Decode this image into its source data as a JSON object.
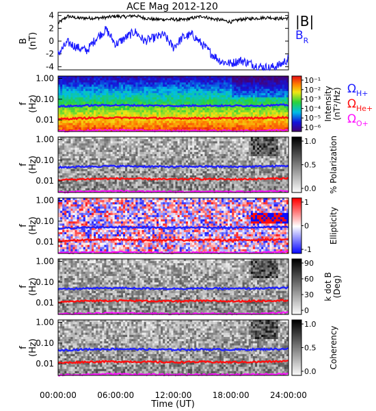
{
  "title": "ACE Mag 2012-120",
  "colors": {
    "b_total": "#000000",
    "b_r": "#1a1aff",
    "h_plus": "#2020ff",
    "he_plus": "#ff1010",
    "o_plus": "#ff10ff"
  },
  "time_axis": {
    "xlabel": "Time (UT)",
    "range_hours": [
      0,
      24
    ],
    "ticks": [
      "00:00:00",
      "06:00:00",
      "12:00:00",
      "18:00:00",
      "24:00:00"
    ]
  },
  "freq_axis": {
    "ylabel_top": "f",
    "ylabel_bottom": "(Hz)",
    "ticks": [
      "1.00",
      "0.10",
      "0.01"
    ],
    "log_range": [
      0.0028,
      1.3
    ]
  },
  "legends": {
    "b_total": "|B|",
    "b_r": "B",
    "b_r_sub": "R",
    "h_plus": "Ω",
    "h_plus_sub": "H+",
    "he_plus": "Ω",
    "he_plus_sub": "He+",
    "o_plus": "Ω",
    "o_plus_sub": "O+"
  },
  "chart_data": [
    {
      "type": "line",
      "panel": "magnetic field",
      "ylabel": "B",
      "ylabel_unit": "(nT)",
      "ylim": [
        -4.5,
        4.5
      ],
      "yticks": [
        "4",
        "2",
        "0",
        "-2",
        "-4"
      ],
      "x_hours": [
        0,
        1,
        2,
        3,
        4,
        5,
        6,
        7,
        8,
        9,
        10,
        11,
        12,
        13,
        14,
        15,
        16,
        17,
        18,
        19,
        20,
        21,
        22,
        23,
        24
      ],
      "series": [
        {
          "name": "|B|",
          "values": [
            2.8,
            3.9,
            3.6,
            3.6,
            3.6,
            3.7,
            3.9,
            3.8,
            4.0,
            3.6,
            3.4,
            3.4,
            3.4,
            3.3,
            3.6,
            3.9,
            3.5,
            3.3,
            3.0,
            3.4,
            3.5,
            3.6,
            3.7,
            3.5,
            3.6
          ]
        },
        {
          "name": "BR",
          "values": [
            -2.0,
            -0.2,
            -1.0,
            -1.5,
            0.5,
            1.8,
            -0.5,
            0.5,
            1.5,
            0.0,
            0.5,
            1.0,
            -1.0,
            0.6,
            1.0,
            -0.5,
            -2.0,
            -3.2,
            -3.5,
            -3.0,
            -3.5,
            -4.0,
            -4.2,
            -3.8,
            -2.8
          ]
        }
      ]
    },
    {
      "type": "heatmap",
      "panel": "intensity",
      "colorbar_label": "Intensity",
      "colorbar_unit": "(nT²/Hz)",
      "colorbar_ticks": [
        "10⁻¹",
        "10⁻²",
        "10⁻³",
        "10⁻⁴",
        "10⁻⁵",
        "10⁻⁶"
      ],
      "colorbar_scale": "rainbow"
    },
    {
      "type": "heatmap",
      "panel": "polarization",
      "colorbar_label": "% Polarization",
      "colorbar_ticks": [
        "1.0",
        "0.5",
        "0.0"
      ],
      "colorbar_scale": "grayscale"
    },
    {
      "type": "heatmap",
      "panel": "ellipticity",
      "colorbar_label": "Ellipticity",
      "colorbar_ticks": [
        "1",
        "0",
        "-1"
      ],
      "colorbar_scale": "blue-white-red"
    },
    {
      "type": "heatmap",
      "panel": "k dot B",
      "colorbar_label": "k dot B",
      "colorbar_unit": "(Deg)",
      "colorbar_ticks": [
        "90",
        "60",
        "30",
        "0"
      ],
      "colorbar_scale": "grayscale"
    },
    {
      "type": "heatmap",
      "panel": "coherency",
      "colorbar_label": "Coherency",
      "colorbar_ticks": [
        "1.0",
        "0.5",
        "0.0"
      ],
      "colorbar_scale": "grayscale"
    },
    {
      "type": "line",
      "panel": "gyrofrequency overlays (all spectral panels)",
      "x_hours": [
        0,
        3,
        6,
        9,
        12,
        15,
        18,
        21,
        24
      ],
      "series": [
        {
          "name": "ΩH+",
          "values": [
            0.045,
            0.05,
            0.052,
            0.05,
            0.048,
            0.05,
            0.048,
            0.05,
            0.053
          ]
        },
        {
          "name": "ΩHe+",
          "values": [
            0.011,
            0.0125,
            0.013,
            0.0125,
            0.012,
            0.0125,
            0.012,
            0.0125,
            0.0135
          ]
        },
        {
          "name": "ΩO+",
          "values": [
            0.0029,
            0.0031,
            0.0033,
            0.0031,
            0.003,
            0.0031,
            0.003,
            0.0031,
            0.0034
          ]
        }
      ]
    }
  ]
}
